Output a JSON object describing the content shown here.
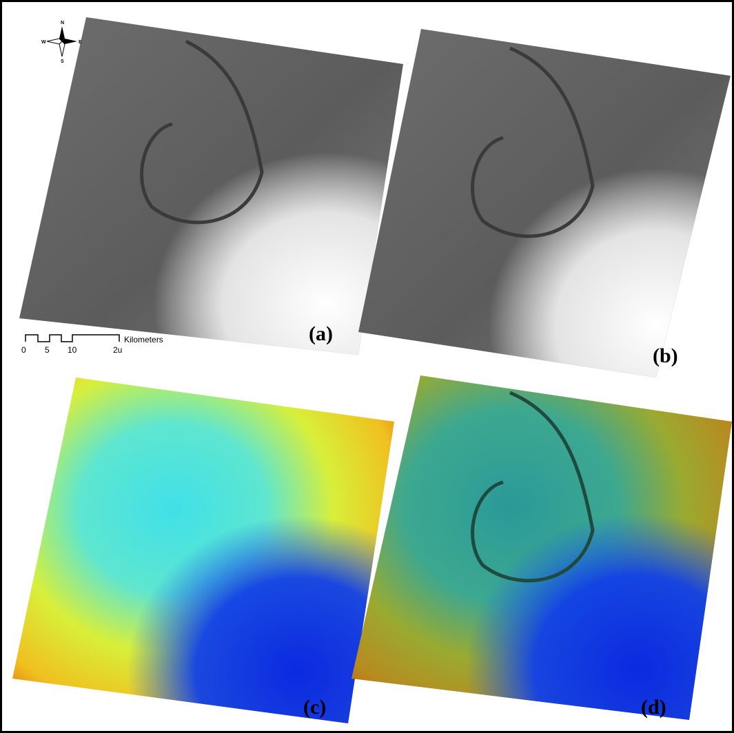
{
  "compass": {
    "north": "N",
    "west": "W",
    "east": "E",
    "south": "S"
  },
  "scale_bar": {
    "ticks": [
      "0",
      "5",
      "10",
      "2u"
    ],
    "unit": "Kilometers"
  },
  "panels": [
    {
      "label": "(a)"
    },
    {
      "label": "(b)"
    },
    {
      "label": "(c)"
    },
    {
      "label": "(d)"
    }
  ]
}
